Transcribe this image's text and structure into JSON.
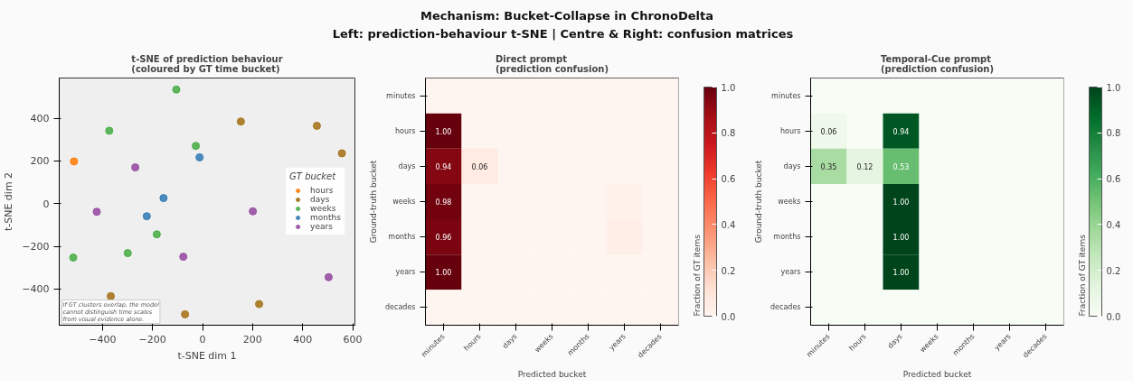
{
  "chart_data": [
    {
      "type": "other",
      "title": "Mechanism: Bucket-Collapse in ChronoDelta",
      "subtitle": "Left: prediction-behaviour t-SNE  |  Centre & Right: confusion matrices"
    },
    {
      "type": "scatter",
      "title": "t-SNE of prediction behaviour\n(coloured by GT time bucket)",
      "xlabel": "t-SNE dim 1",
      "ylabel": "t-SNE dim 2",
      "legend_title": "GT bucket",
      "legend": "right",
      "grid": false,
      "marker": "circle",
      "xlim": [
        -573,
        609
      ],
      "ylim": [
        -570,
        589
      ],
      "xticks": [
        {
          "value": -400,
          "label": "−400"
        },
        {
          "value": -200,
          "label": "−200"
        },
        0,
        200,
        400,
        600
      ],
      "yticks": [
        {
          "value": -400,
          "label": "−400"
        },
        {
          "value": -200,
          "label": "−200"
        },
        0,
        200,
        400
      ],
      "annotations": [
        "If GT clusters overlap, the model\ncannot distinguish time scales\nfrom visual evidence alone."
      ],
      "series": [
        {
          "name": "hours",
          "color": "#ff7f0e",
          "x": [
            -514
          ],
          "values": [
            198
          ]
        },
        {
          "name": "days",
          "color": "#a6761d",
          "x": [
            153,
            457,
            557,
            -367,
            -70,
            226
          ],
          "values": [
            385,
            365,
            236,
            -434,
            -519,
            -471
          ]
        },
        {
          "name": "weeks",
          "color": "#4daf4a",
          "x": [
            -105,
            -373,
            -27,
            -183,
            -299,
            -517
          ],
          "values": [
            535,
            342,
            271,
            -144,
            -232,
            -253
          ]
        },
        {
          "name": "months",
          "color": "#377eb8",
          "x": [
            -12,
            -156,
            -223
          ],
          "values": [
            217,
            26,
            -59
          ]
        },
        {
          "name": "years",
          "color": "#984ea3",
          "x": [
            -269,
            -423,
            201,
            -77,
            504
          ],
          "values": [
            170,
            -38,
            -36,
            -249,
            -345
          ]
        }
      ]
    },
    {
      "type": "heatmap",
      "title": "Direct prompt\n(prediction confusion)",
      "xlabel": "Predicted bucket",
      "ylabel": "Ground-truth bucket",
      "clabel": "Fraction of GT items",
      "categories": [
        "minutes",
        "hours",
        "days",
        "weeks",
        "months",
        "years",
        "decades"
      ],
      "y_categories": [
        "minutes",
        "hours",
        "days",
        "weeks",
        "months",
        "years",
        "decades"
      ],
      "clim": [
        0,
        1
      ],
      "cticks": [
        {
          "value": 0,
          "label": "0.0"
        },
        {
          "value": 0.2,
          "label": "0.2"
        },
        {
          "value": 0.4,
          "label": "0.4"
        },
        {
          "value": 0.6,
          "label": "0.6"
        },
        {
          "value": 0.8,
          "label": "0.8"
        },
        {
          "value": 1,
          "label": "1.0"
        }
      ],
      "cells": [
        [
          0,
          0,
          0,
          0,
          0,
          0,
          0
        ],
        [
          1.0,
          0,
          0,
          0,
          0,
          0,
          0
        ],
        [
          0.94,
          0.06,
          0,
          0,
          0,
          0,
          0
        ],
        [
          0.98,
          0,
          0,
          0,
          0,
          0.02,
          0
        ],
        [
          0.96,
          0,
          0,
          0,
          0,
          0.04,
          0
        ],
        [
          1.0,
          0,
          0,
          0,
          0,
          0,
          0
        ],
        [
          0,
          0,
          0,
          0,
          0,
          0,
          0
        ]
      ],
      "cell_labels": [
        [
          null,
          null,
          null,
          null,
          null,
          null,
          null
        ],
        [
          "1.00",
          null,
          null,
          null,
          null,
          null,
          null
        ],
        [
          "0.94",
          "0.06",
          null,
          null,
          null,
          null,
          null
        ],
        [
          "0.98",
          null,
          null,
          null,
          null,
          null,
          null
        ],
        [
          "0.96",
          null,
          null,
          null,
          null,
          null,
          null
        ],
        [
          "1.00",
          null,
          null,
          null,
          null,
          null,
          null
        ],
        [
          null,
          null,
          null,
          null,
          null,
          null,
          null
        ]
      ]
    },
    {
      "type": "heatmap",
      "title": "Temporal-Cue prompt\n(prediction confusion)",
      "xlabel": "Predicted bucket",
      "ylabel": "Ground-truth bucket",
      "clabel": "Fraction of GT items",
      "categories": [
        "minutes",
        "hours",
        "days",
        "weeks",
        "months",
        "years",
        "decades"
      ],
      "y_categories": [
        "minutes",
        "hours",
        "days",
        "weeks",
        "months",
        "years",
        "decades"
      ],
      "clim": [
        0,
        1
      ],
      "cticks": [
        {
          "value": 0,
          "label": "0.0"
        },
        {
          "value": 0.2,
          "label": "0.2"
        },
        {
          "value": 0.4,
          "label": "0.4"
        },
        {
          "value": 0.6,
          "label": "0.6"
        },
        {
          "value": 0.8,
          "label": "0.8"
        },
        {
          "value": 1,
          "label": "1.0"
        }
      ],
      "cells": [
        [
          0,
          0,
          0,
          0,
          0,
          0,
          0
        ],
        [
          0.06,
          0,
          0.94,
          0,
          0,
          0,
          0
        ],
        [
          0.35,
          0.12,
          0.53,
          0,
          0,
          0,
          0
        ],
        [
          0,
          0,
          1.0,
          0,
          0,
          0,
          0
        ],
        [
          0,
          0,
          1.0,
          0,
          0,
          0,
          0
        ],
        [
          0,
          0,
          1.0,
          0,
          0,
          0,
          0
        ],
        [
          0,
          0,
          0,
          0,
          0,
          0,
          0
        ]
      ],
      "cell_labels": [
        [
          null,
          null,
          null,
          null,
          null,
          null,
          null
        ],
        [
          "0.06",
          null,
          "0.94",
          null,
          null,
          null,
          null
        ],
        [
          "0.35",
          "0.12",
          "0.53",
          null,
          null,
          null,
          null
        ],
        [
          null,
          null,
          "1.00",
          null,
          null,
          null,
          null
        ],
        [
          null,
          null,
          "1.00",
          null,
          null,
          null,
          null
        ],
        [
          null,
          null,
          "1.00",
          null,
          null,
          null,
          null
        ],
        [
          null,
          null,
          null,
          null,
          null,
          null,
          null
        ]
      ]
    }
  ]
}
